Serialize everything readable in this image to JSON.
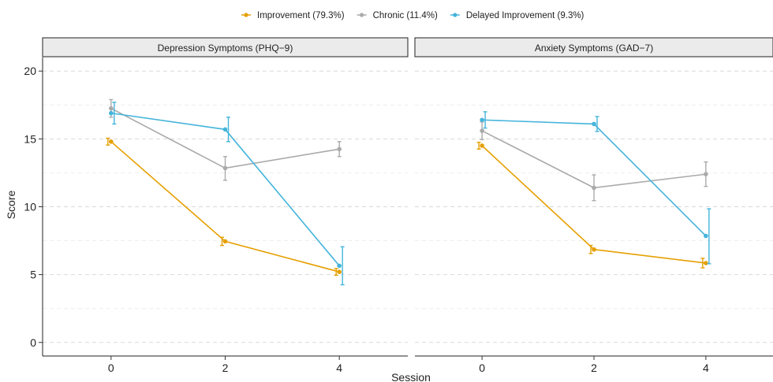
{
  "chart_data": {
    "type": "line",
    "xlabel": "Session",
    "ylabel": "Score",
    "x_ticks": [
      0,
      2,
      4
    ],
    "y_ticks": [
      0,
      5,
      10,
      15,
      20
    ],
    "ylim": [
      -1,
      21
    ],
    "xlim": [
      -1.2,
      5.2
    ],
    "grid": true,
    "legend_position": "top",
    "legend": [
      {
        "name": "Improvement (79.3%)",
        "color": "#E69F00"
      },
      {
        "name": "Chronic (11.4%)",
        "color": "#AAAAAA"
      },
      {
        "name": "Delayed Improvement (9.3%)",
        "color": "#45B4DB"
      }
    ],
    "panels": [
      {
        "title": "Depression Symptoms (PHQ−9)",
        "series": [
          {
            "name": "Improvement (79.3%)",
            "x": [
              0,
              2,
              4
            ],
            "values": [
              14.8,
              7.45,
              5.2
            ],
            "err_low": [
              14.55,
              7.15,
              4.95
            ],
            "err_high": [
              15.05,
              7.75,
              5.45
            ]
          },
          {
            "name": "Chronic (11.4%)",
            "x": [
              0,
              2,
              4
            ],
            "values": [
              17.25,
              12.85,
              14.25
            ],
            "err_low": [
              16.6,
              11.95,
              13.7
            ],
            "err_high": [
              17.9,
              13.7,
              14.8
            ]
          },
          {
            "name": "Delayed Improvement (9.3%)",
            "x": [
              0,
              2,
              4
            ],
            "values": [
              16.9,
              15.7,
              5.65
            ],
            "err_low": [
              16.1,
              14.8,
              4.25
            ],
            "err_high": [
              17.7,
              16.6,
              7.05
            ]
          }
        ]
      },
      {
        "title": "Anxiety Symptoms (GAD−7)",
        "series": [
          {
            "name": "Improvement (79.3%)",
            "x": [
              0,
              2,
              4
            ],
            "values": [
              14.5,
              6.85,
              5.85
            ],
            "err_low": [
              14.25,
              6.55,
              5.5
            ],
            "err_high": [
              14.75,
              7.15,
              6.2
            ]
          },
          {
            "name": "Chronic (11.4%)",
            "x": [
              0,
              2,
              4
            ],
            "values": [
              15.6,
              11.4,
              12.4
            ],
            "err_low": [
              14.95,
              10.45,
              11.5
            ],
            "err_high": [
              16.25,
              12.35,
              13.3
            ]
          },
          {
            "name": "Delayed Improvement (9.3%)",
            "x": [
              0,
              2,
              4
            ],
            "values": [
              16.4,
              16.1,
              7.85
            ],
            "err_low": [
              15.8,
              15.55,
              5.8
            ],
            "err_high": [
              17.0,
              16.65,
              9.85
            ]
          }
        ]
      }
    ]
  }
}
